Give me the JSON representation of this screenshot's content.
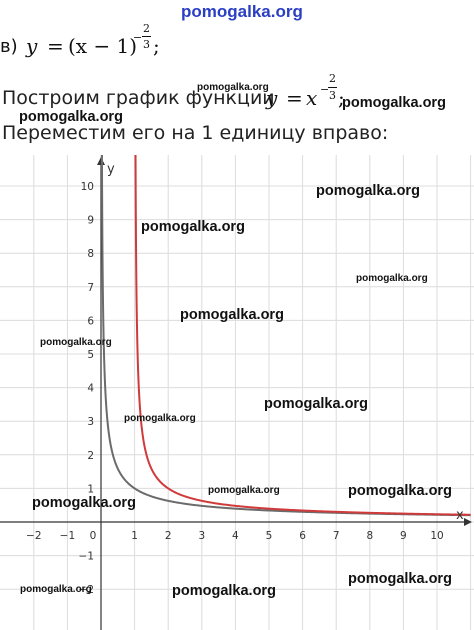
{
  "header": {
    "watermark": "pomogalka.org"
  },
  "task": {
    "label": "в)",
    "lhs": "y",
    "eq": "=",
    "base": "(x − 1)",
    "exp_sign": "−",
    "exp_num": "2",
    "exp_den": "3",
    "end": ";"
  },
  "step1": {
    "text": "Построим график функции",
    "lhs": "y",
    "eq": "=",
    "base": "x",
    "exp_sign": "−",
    "exp_num": "2",
    "exp_den": "3",
    "end": ";"
  },
  "step2": {
    "text": "Переместим его на 1 единицу вправо:"
  },
  "watermarks": [
    "pomogalka.org",
    "pomogalka.org",
    "pomogalka.org",
    "pomogalka.org",
    "pomogalka.org",
    "pomogalka.org",
    "pomogalka.org",
    "pomogalka.org",
    "pomogalka.org",
    "pomogalka.org",
    "pomogalka.org",
    "pomogalka.org",
    "pomogalka.org",
    "pomogalka.org",
    "pomogalka.org"
  ],
  "chart_data": {
    "type": "line",
    "xlabel": "x",
    "ylabel": "y",
    "xlim": [
      -2.5,
      11
    ],
    "ylim": [
      -2.6,
      11
    ],
    "x_ticks": [
      "−2",
      "−1",
      "0",
      "1",
      "2",
      "3",
      "4",
      "5",
      "6",
      "7",
      "8",
      "9",
      "10"
    ],
    "y_ticks": [
      "−2",
      "−1",
      "1",
      "2",
      "3",
      "4",
      "5",
      "6",
      "7",
      "8",
      "9",
      "10"
    ],
    "grid": true,
    "series": [
      {
        "formula": "y = x^(-2/3)",
        "shift": 0,
        "color": "#6b6b6b"
      },
      {
        "formula": "y = (x-1)^(-2/3)",
        "shift": 1,
        "color": "#d03a3a"
      }
    ]
  }
}
